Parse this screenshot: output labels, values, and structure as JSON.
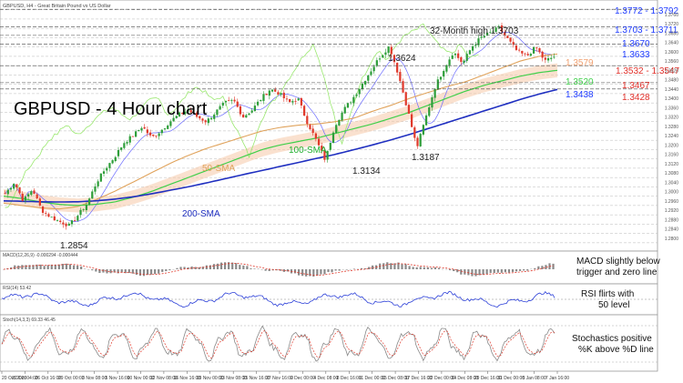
{
  "header": {
    "symbol_line": "GBPUSD, H4 - Great Britain Pound vs US Dollar"
  },
  "title": "GBPUSD - 4 Hour chart",
  "chart_data": {
    "type": "candlestick",
    "title": "GBPUSD - 4 Hour chart",
    "xlabel": "",
    "ylabel": "",
    "ylim": [
      1.276,
      1.381
    ],
    "x_ticks": [
      "20 Oct 2020",
      "22 Oct 04:00",
      "26 Oct 16:00",
      "29 Oct 00:00",
      "3 Nov 08:00",
      "5 Nov 16:00",
      "10 Nov 00:00",
      "12 Nov 08:00",
      "16 Nov 16:00",
      "19 Nov 00:00",
      "23 Nov 08:00",
      "25 Nov 16:00",
      "27 Nov 16:00",
      "2 Dec 00:00",
      "4 Dec 08:00",
      "8 Dec 16:00",
      "11 Dec 00:00",
      "15 Dec 08:00",
      "17 Dec 16:00",
      "22 Dec 00:00",
      "24 Dec 08:00",
      "29 Dec 16:00",
      "31 Dec 00:00",
      "5 Jan 08:00",
      "7 Jan 16:00"
    ],
    "price": [
      1.299,
      1.304,
      1.296,
      1.301,
      1.292,
      1.289,
      1.287,
      1.2854,
      1.29,
      1.295,
      1.304,
      1.31,
      1.315,
      1.321,
      1.324,
      1.328,
      1.323,
      1.326,
      1.33,
      1.333,
      1.335,
      1.332,
      1.33,
      1.334,
      1.338,
      1.339,
      1.332,
      1.335,
      1.34,
      1.344,
      1.342,
      1.338,
      1.34,
      1.33,
      1.322,
      1.3134,
      1.328,
      1.335,
      1.34,
      1.346,
      1.352,
      1.358,
      1.3624,
      1.35,
      1.335,
      1.3187,
      1.332,
      1.345,
      1.353,
      1.36,
      1.355,
      1.362,
      1.366,
      1.368,
      1.3703,
      1.365,
      1.36,
      1.358,
      1.362,
      1.356,
      1.3579
    ],
    "indicators": [
      {
        "name": "50-SMA",
        "values": [
          1.295,
          1.294,
          1.293,
          1.2925,
          1.2935,
          1.2965,
          1.3,
          1.304,
          1.308,
          1.312,
          1.3155,
          1.3185,
          1.321,
          1.3235,
          1.326,
          1.3275,
          1.3285,
          1.329,
          1.33,
          1.3315,
          1.3345,
          1.337,
          1.34,
          1.3425,
          1.345,
          1.347,
          1.35,
          1.353,
          1.356,
          1.358,
          1.359
        ]
      },
      {
        "name": "100-SMA",
        "values": [
          1.298,
          1.297,
          1.2955,
          1.2945,
          1.294,
          1.2945,
          1.2955,
          1.2975,
          1.3,
          1.303,
          1.306,
          1.309,
          1.312,
          1.315,
          1.318,
          1.32,
          1.3215,
          1.323,
          1.325,
          1.327,
          1.329,
          1.3315,
          1.334,
          1.337,
          1.34,
          1.343,
          1.3455,
          1.3475,
          1.3495,
          1.351,
          1.352
        ]
      },
      {
        "name": "200-SMA",
        "values": [
          1.296,
          1.2958,
          1.2956,
          1.2955,
          1.2956,
          1.296,
          1.2967,
          1.2977,
          1.299,
          1.3005,
          1.302,
          1.3037,
          1.3055,
          1.3073,
          1.309,
          1.3108,
          1.3125,
          1.3143,
          1.316,
          1.318,
          1.32,
          1.3222,
          1.3245,
          1.327,
          1.3295,
          1.332,
          1.3345,
          1.337,
          1.3395,
          1.3418,
          1.3438
        ]
      }
    ],
    "price_labels": [
      {
        "text": "1.3772 - 1.3792",
        "y": 1.3782,
        "color": "#1f3cff"
      },
      {
        "text": "1.3703 - 1.3711",
        "y": 1.3707,
        "color": "#1f3cff"
      },
      {
        "text": "1.3670",
        "y": 1.367,
        "color": "#1f3cff"
      },
      {
        "text": "1.3633",
        "y": 1.3633,
        "color": "#1f3cff"
      },
      {
        "text": "1.3579",
        "y": 1.3595,
        "color": "#f0a070"
      },
      {
        "text": "1.3532 - 1.3547",
        "y": 1.3545,
        "color": "#e0302a"
      },
      {
        "text": "1.3520",
        "y": 1.3515,
        "color": "#3fcf4a"
      },
      {
        "text": "1.3467",
        "y": 1.3467,
        "color": "#e0302a"
      },
      {
        "text": "1.3428",
        "y": 1.344,
        "color": "#e0302a"
      },
      {
        "text": "1.3438",
        "y": 1.3415,
        "color": "#1f3cff"
      }
    ],
    "annotations": [
      {
        "text": "32-Month high 1.3703"
      },
      {
        "text": "1.3624"
      },
      {
        "text": "1.3134"
      },
      {
        "text": "1.3187"
      },
      {
        "text": "1.2854"
      },
      {
        "text": "50-SMA"
      },
      {
        "text": "100-SMA"
      },
      {
        "text": "200-SMA"
      }
    ],
    "subpanels": [
      {
        "name": "MACD",
        "header": "MACD(12,26,9) -0.000294 -0.000444",
        "note": "MACD slightly below trigger and zero line"
      },
      {
        "name": "RSI",
        "header": "RSI(14) 53.42",
        "note": "RSI flirts with 50 level"
      },
      {
        "name": "Stochastic",
        "header": "Stoch(14,3,3) 69.33 46.45",
        "note": "Stochastics positive %K above %D line"
      }
    ]
  },
  "colors": {
    "sma50": "#e0a35c",
    "sma100": "#3fcf4a",
    "sma200": "#1f2fc0",
    "bull": "#2e9e3a",
    "bear": "#e03a2c",
    "ichimoku": "#f5c9a8",
    "tenkan": "#6a6aff",
    "chikou": "#9ae86f"
  }
}
